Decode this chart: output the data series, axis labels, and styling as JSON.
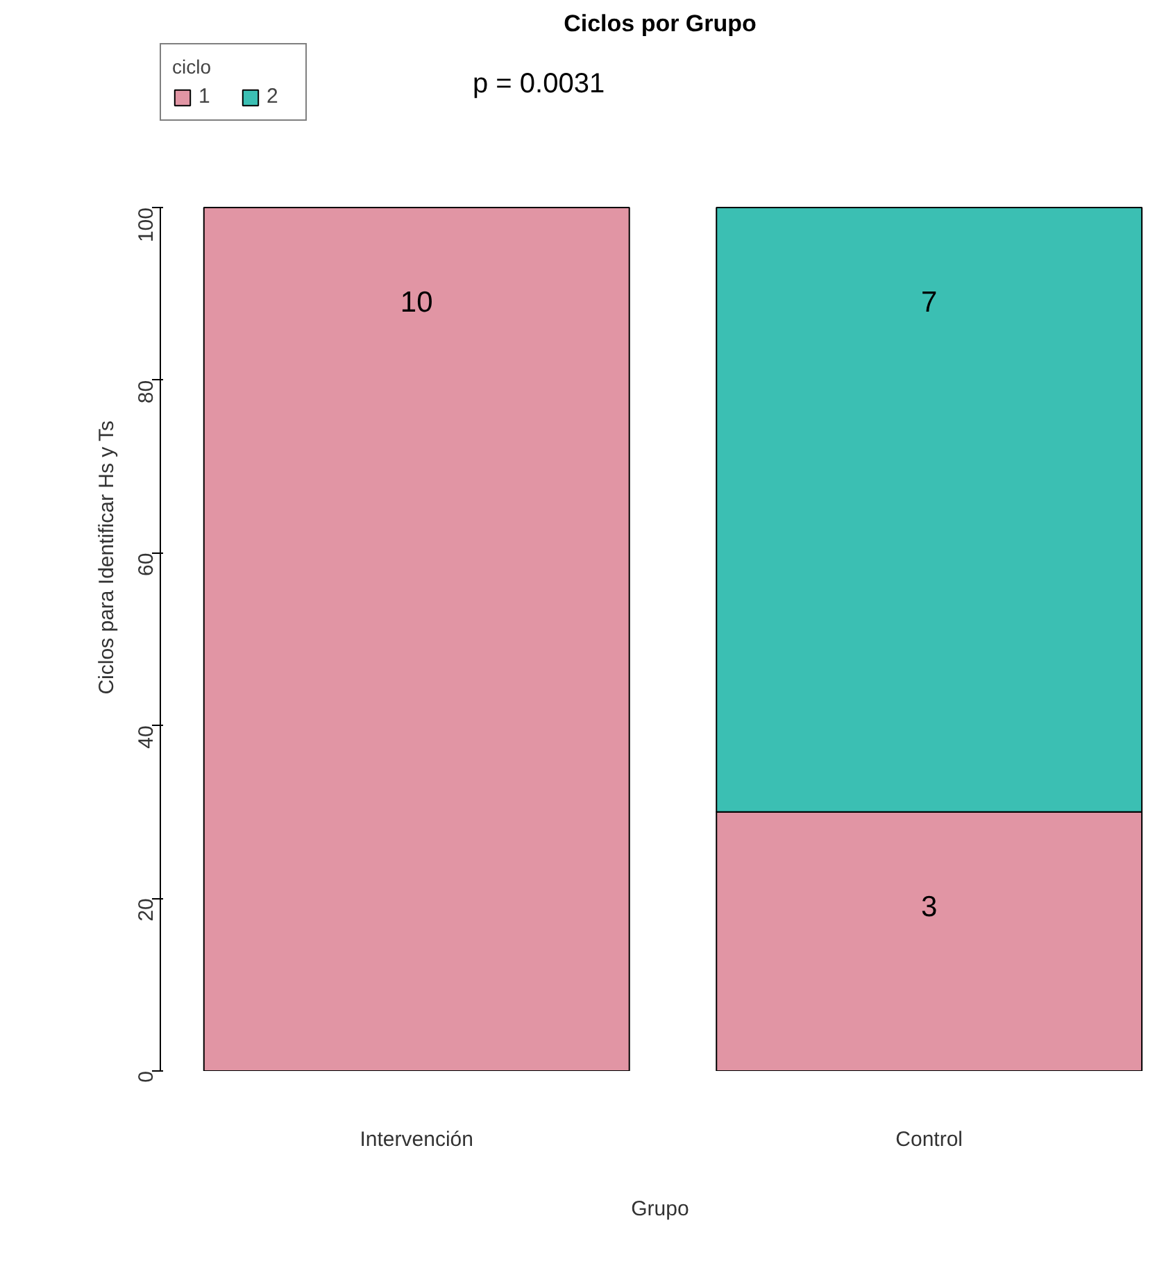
{
  "chart_data": {
    "type": "bar",
    "title": "Ciclos por Grupo",
    "xlabel": "Grupo",
    "ylabel": "Ciclos para Identificar Hs y Ts",
    "legend_title": "ciclo",
    "categories": [
      "Intervención",
      "Control"
    ],
    "stacked": true,
    "series": [
      {
        "name": "1",
        "color": "#e195a4",
        "values": [
          100,
          30
        ]
      },
      {
        "name": "2",
        "color": "#3bbfb3",
        "values": [
          0,
          70
        ]
      }
    ],
    "ylim": [
      0,
      100
    ],
    "yticks": [
      0,
      20,
      40,
      60,
      80,
      100
    ],
    "grid": false,
    "legend": "top left",
    "annotations": [
      "p = 0.0031",
      {
        "text": "10",
        "x": "Intervención",
        "y": 100
      },
      {
        "text": "7",
        "x": "Control",
        "y": 100
      },
      {
        "text": "3",
        "x": "Control",
        "y": 30
      }
    ]
  }
}
